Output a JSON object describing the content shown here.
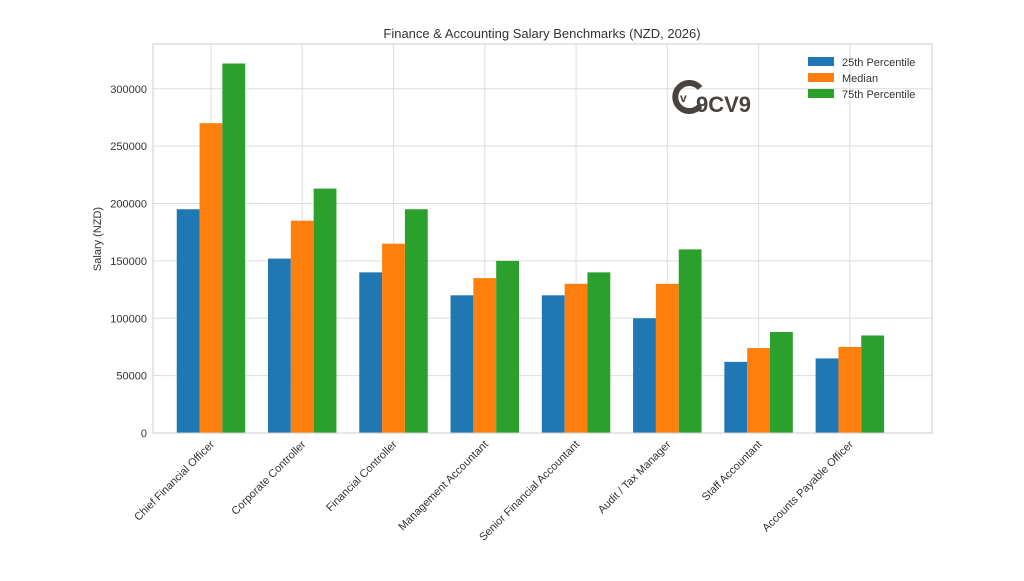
{
  "chart_data": {
    "type": "bar",
    "title": "Finance & Accounting Salary Benchmarks (NZD, 2026)",
    "xlabel": "",
    "ylabel": "Salary (NZD)",
    "ylim": [
      0,
      339000
    ],
    "yticks": [
      0,
      50000,
      100000,
      150000,
      200000,
      250000,
      300000
    ],
    "ytick_labels": [
      "0",
      "50000",
      "100000",
      "150000",
      "200000",
      "250000",
      "300000"
    ],
    "grid": true,
    "legend_placement": "top-right",
    "categories": [
      "Chief Financial Officer",
      "Corporate Controller",
      "Financial Controller",
      "Management Accountant",
      "Senior Financial Accountant",
      "Audit / Tax Manager",
      "Staff Accountant",
      "Accounts Payable Officer"
    ],
    "series": [
      {
        "name": "25th Percentile",
        "color": "#1f77b4",
        "values": [
          195000,
          152000,
          140000,
          120000,
          120000,
          100000,
          62000,
          65000
        ]
      },
      {
        "name": "Median",
        "color": "#ff7f0e",
        "values": [
          270000,
          185000,
          165000,
          135000,
          130000,
          130000,
          74000,
          75000
        ]
      },
      {
        "name": "75th Percentile",
        "color": "#2ca02c",
        "values": [
          322000,
          213000,
          195000,
          150000,
          140000,
          160000,
          88000,
          85000
        ]
      }
    ],
    "watermark": "9CV9"
  }
}
